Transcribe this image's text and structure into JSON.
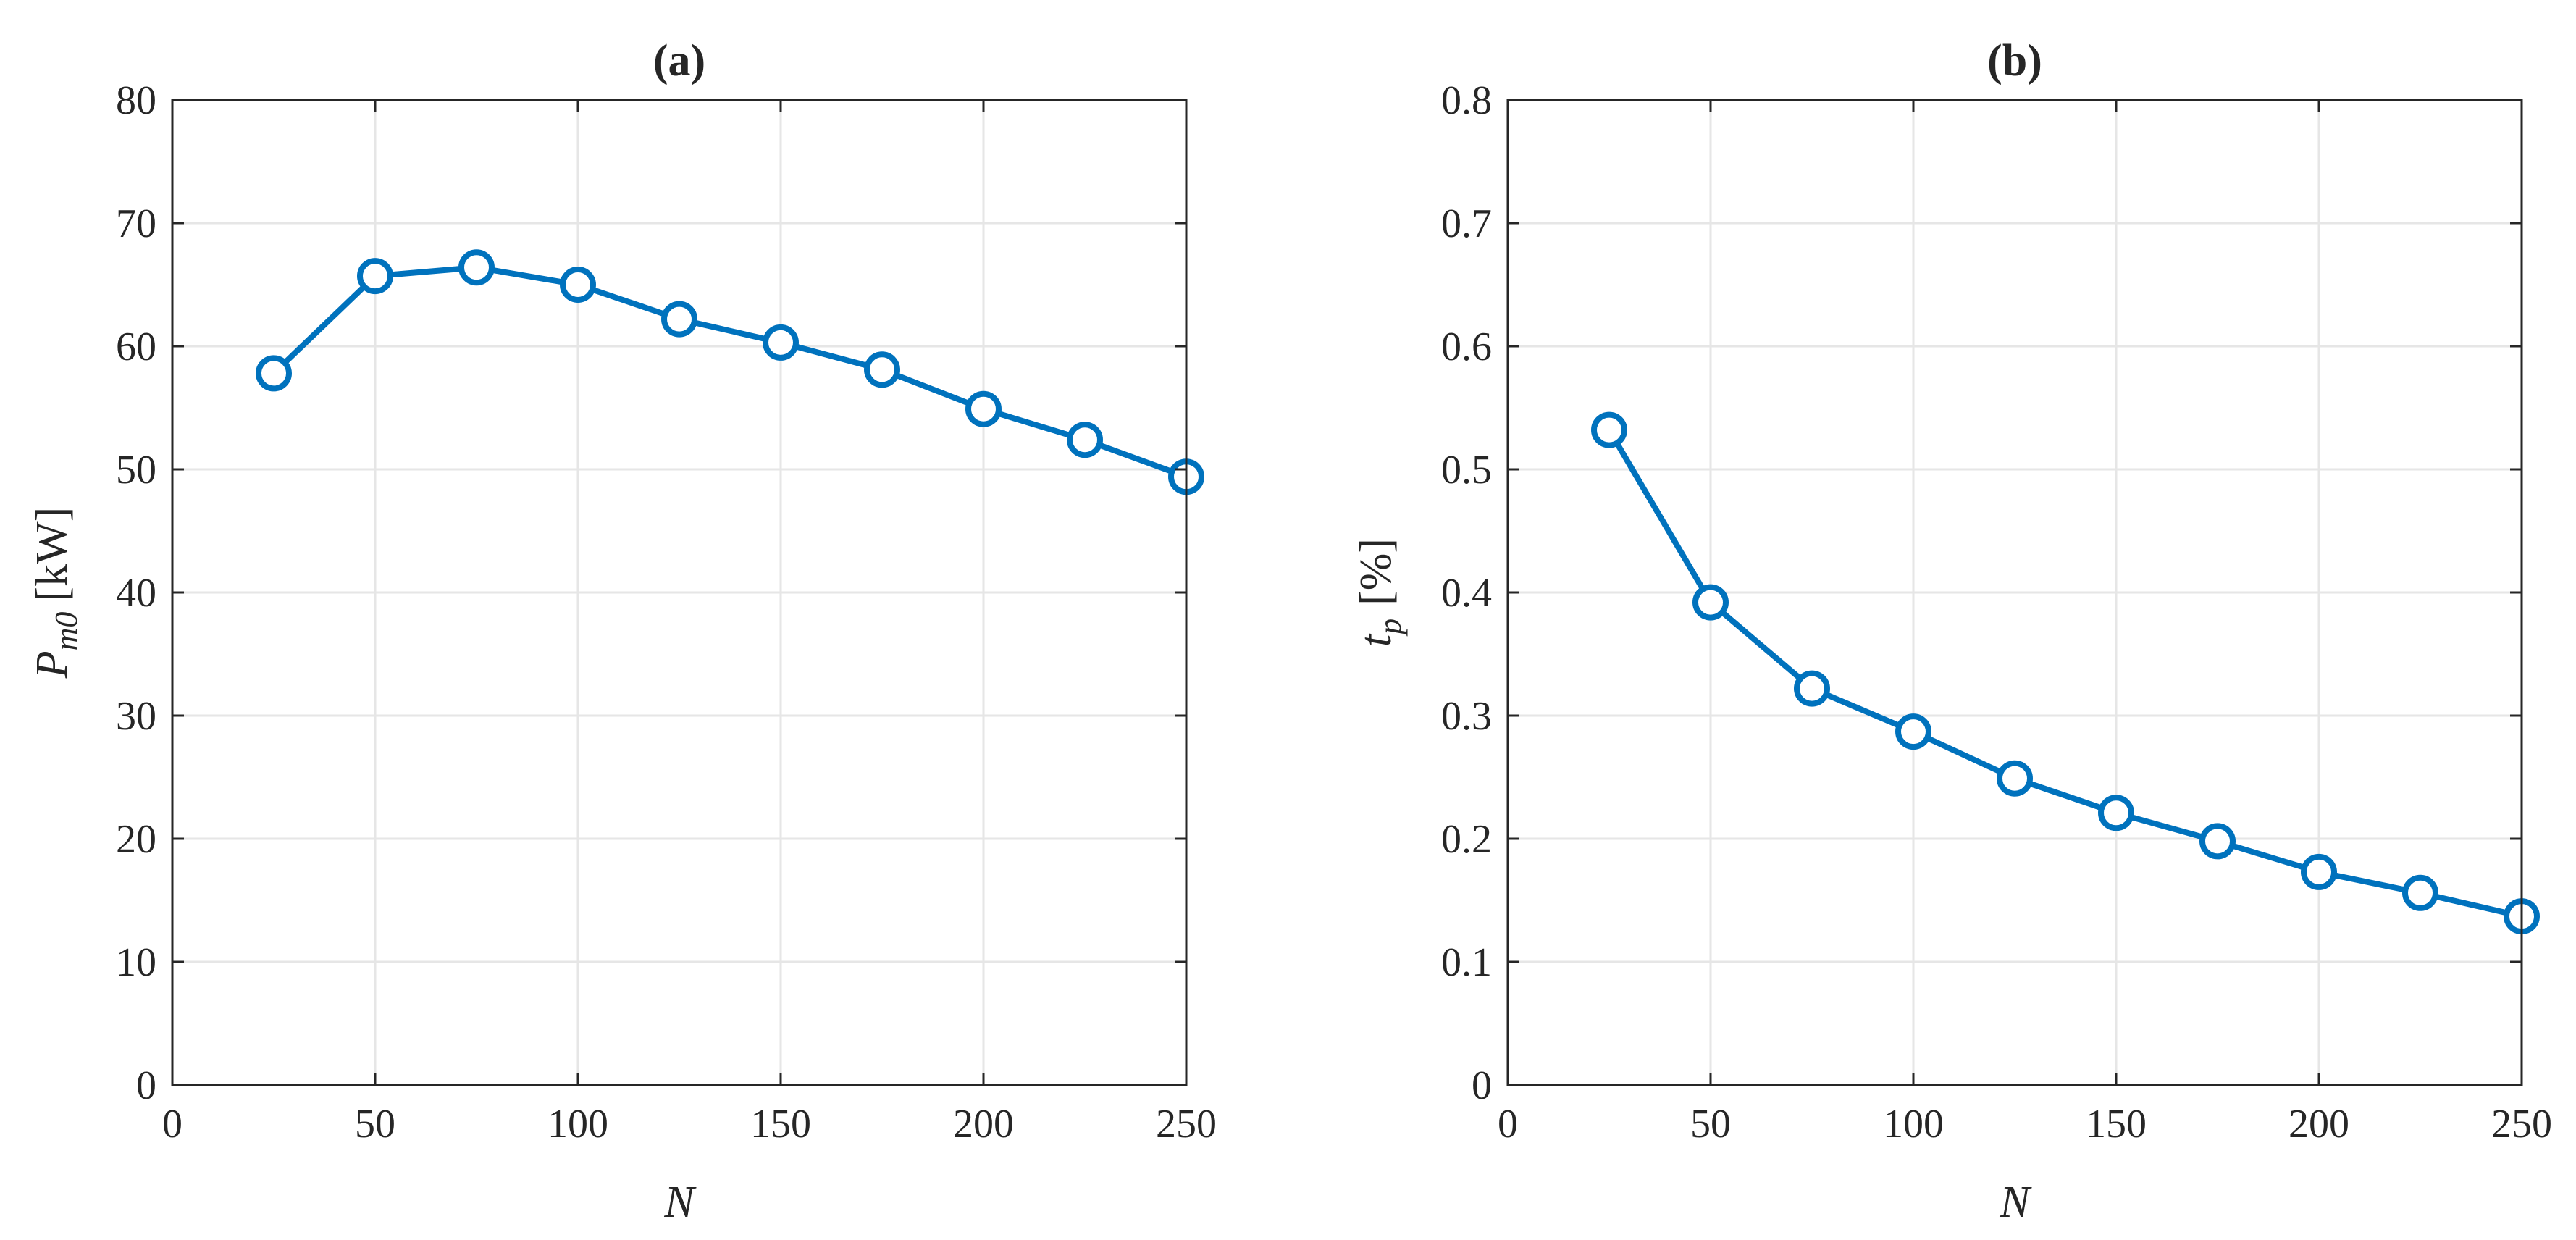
{
  "figure": {
    "line_color": "#0072BD",
    "grid_color": "#e6e6e6",
    "axis_color": "#262626",
    "marker": "circle-open"
  },
  "chart_data": [
    {
      "type": "line",
      "title": "(a)",
      "xlabel": "N",
      "ylabel": {
        "main": "P",
        "sub": "m0",
        "unit": "[kW]"
      },
      "xlim": [
        0,
        250
      ],
      "ylim": [
        0,
        80
      ],
      "xticks": [
        0,
        50,
        100,
        150,
        200,
        250
      ],
      "yticks": [
        0,
        10,
        20,
        30,
        40,
        50,
        60,
        70,
        80
      ],
      "xtick_labels": [
        "0",
        "50",
        "100",
        "150",
        "200",
        "250"
      ],
      "ytick_labels": [
        "0",
        "10",
        "20",
        "30",
        "40",
        "50",
        "60",
        "70",
        "80"
      ],
      "grid": true,
      "series": [
        {
          "name": "P_m0",
          "x": [
            25,
            50,
            75,
            100,
            125,
            150,
            175,
            200,
            225,
            250
          ],
          "y": [
            57.8,
            65.7,
            66.4,
            65.0,
            62.2,
            60.3,
            58.1,
            54.9,
            52.4,
            49.4
          ]
        }
      ]
    },
    {
      "type": "line",
      "title": "(b)",
      "xlabel": "N",
      "ylabel": {
        "main": "t",
        "sub": "p",
        "unit": "[%]"
      },
      "xlim": [
        0,
        250
      ],
      "ylim": [
        0,
        0.8
      ],
      "xticks": [
        0,
        50,
        100,
        150,
        200,
        250
      ],
      "yticks": [
        0,
        0.1,
        0.2,
        0.3,
        0.4,
        0.5,
        0.6,
        0.7,
        0.8
      ],
      "xtick_labels": [
        "0",
        "50",
        "100",
        "150",
        "200",
        "250"
      ],
      "ytick_labels": [
        "0",
        "0.1",
        "0.2",
        "0.3",
        "0.4",
        "0.5",
        "0.6",
        "0.7",
        "0.8"
      ],
      "grid": true,
      "series": [
        {
          "name": "t_p",
          "x": [
            25,
            50,
            75,
            100,
            125,
            150,
            175,
            200,
            225,
            250
          ],
          "y": [
            0.532,
            0.392,
            0.322,
            0.287,
            0.249,
            0.221,
            0.198,
            0.173,
            0.156,
            0.137
          ]
        }
      ]
    }
  ]
}
